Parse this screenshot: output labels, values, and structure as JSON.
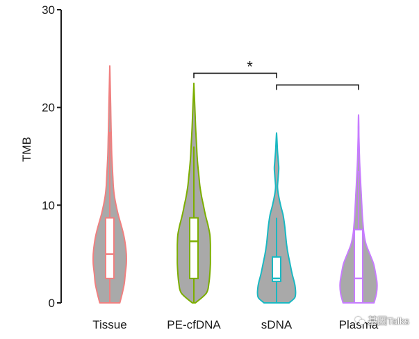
{
  "chart_data": {
    "type": "violin",
    "ylabel": "TMB",
    "xlabel": "",
    "ylim": [
      0,
      30
    ],
    "yticks": [
      "0",
      "10",
      "20",
      "30"
    ],
    "categories": [
      "Tissue",
      "PE-cfDNA",
      "sDNA",
      "Plasma"
    ],
    "grid": false,
    "legend": "none",
    "series": [
      {
        "label": "Tissue",
        "color": "#f08080",
        "box": {
          "min": 0,
          "q1": 2.5,
          "median": 5,
          "q3": 8.7,
          "max": 17.5
        },
        "violin": [
          [
            0,
            0.4
          ],
          [
            1,
            0.5
          ],
          [
            2,
            0.58
          ],
          [
            3,
            0.62
          ],
          [
            4,
            0.66
          ],
          [
            5,
            0.66
          ],
          [
            6,
            0.62
          ],
          [
            7,
            0.55
          ],
          [
            8,
            0.45
          ],
          [
            9,
            0.34
          ],
          [
            10,
            0.25
          ],
          [
            11,
            0.18
          ],
          [
            12,
            0.14
          ],
          [
            13,
            0.12
          ],
          [
            14,
            0.1
          ],
          [
            15,
            0.08
          ],
          [
            16,
            0.07
          ],
          [
            17,
            0.06
          ],
          [
            18,
            0.05
          ],
          [
            20,
            0.035
          ],
          [
            22,
            0.02
          ],
          [
            24,
            0.003
          ]
        ]
      },
      {
        "label": "PE-cfDNA",
        "color": "#7cae00",
        "box": {
          "min": 0,
          "q1": 2.5,
          "median": 6.3,
          "q3": 8.7,
          "max": 16
        },
        "violin": [
          [
            0,
            0.06
          ],
          [
            1,
            0.5
          ],
          [
            2,
            0.6
          ],
          [
            3,
            0.64
          ],
          [
            4,
            0.66
          ],
          [
            5,
            0.66
          ],
          [
            6,
            0.66
          ],
          [
            7,
            0.64
          ],
          [
            8,
            0.56
          ],
          [
            9,
            0.46
          ],
          [
            10,
            0.38
          ],
          [
            11,
            0.3
          ],
          [
            12,
            0.24
          ],
          [
            13,
            0.2
          ],
          [
            14,
            0.16
          ],
          [
            15,
            0.13
          ],
          [
            16,
            0.11
          ],
          [
            17,
            0.09
          ],
          [
            18,
            0.07
          ],
          [
            20,
            0.04
          ],
          [
            22.2,
            0.003
          ]
        ]
      },
      {
        "label": "sDNA",
        "color": "#1ab8c2",
        "box": {
          "min": 0,
          "q1": 2.2,
          "median": 2.5,
          "q3": 4.7,
          "max": 8.7
        },
        "violin": [
          [
            0,
            0.5
          ],
          [
            0.5,
            0.72
          ],
          [
            1,
            0.76
          ],
          [
            1.5,
            0.75
          ],
          [
            2,
            0.72
          ],
          [
            3,
            0.62
          ],
          [
            4,
            0.54
          ],
          [
            5,
            0.46
          ],
          [
            6,
            0.4
          ],
          [
            7,
            0.36
          ],
          [
            8,
            0.32
          ],
          [
            9,
            0.26
          ],
          [
            10,
            0.16
          ],
          [
            11,
            0.08
          ],
          [
            11.5,
            0.05
          ],
          [
            12,
            0.04
          ],
          [
            13,
            0.07
          ],
          [
            13.8,
            0.09
          ],
          [
            14.5,
            0.07
          ],
          [
            15.5,
            0.04
          ],
          [
            16.5,
            0.02
          ],
          [
            17.3,
            0.003
          ]
        ]
      },
      {
        "label": "Plasma",
        "color": "#c77cff",
        "box": {
          "min": 0,
          "q1": 0,
          "median": 2.5,
          "q3": 7.5,
          "max": 13.5
        },
        "violin": [
          [
            0,
            0.62
          ],
          [
            1,
            0.72
          ],
          [
            2,
            0.74
          ],
          [
            3,
            0.68
          ],
          [
            4,
            0.6
          ],
          [
            5,
            0.45
          ],
          [
            6,
            0.3
          ],
          [
            7,
            0.22
          ],
          [
            8,
            0.18
          ],
          [
            9,
            0.15
          ],
          [
            10,
            0.13
          ],
          [
            11,
            0.11
          ],
          [
            12,
            0.09
          ],
          [
            13,
            0.07
          ],
          [
            14,
            0.05
          ],
          [
            15,
            0.035
          ],
          [
            16,
            0.025
          ],
          [
            17,
            0.015
          ],
          [
            18,
            0.01
          ],
          [
            19.1,
            0.003
          ]
        ]
      }
    ],
    "annotations": [
      {
        "type": "bracket",
        "from": "PE-cfDNA",
        "to": "sDNA",
        "y": 23.5,
        "label": "*"
      },
      {
        "type": "bracket",
        "from": "sDNA",
        "to": "Plasma",
        "y": 22.3,
        "label": ""
      }
    ],
    "fill_color": "#a9a9a9"
  },
  "watermark": {
    "text": "基因Talks",
    "icon": "wechat-icon"
  }
}
